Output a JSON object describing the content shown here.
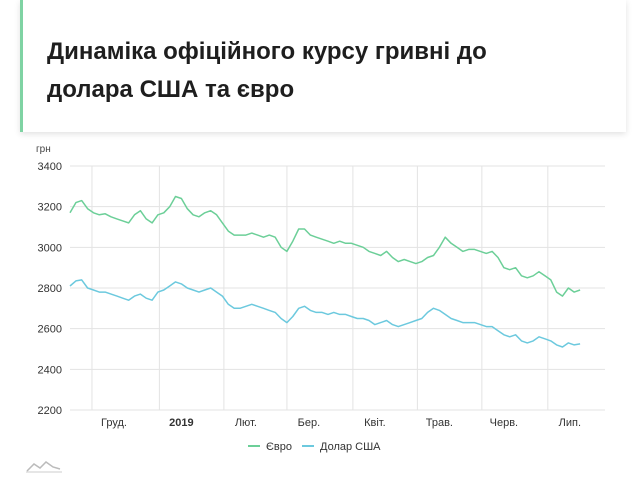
{
  "title": "Динаміка офіційного курсу гривні до долара США та євро",
  "chart_data": {
    "type": "line",
    "title": "Динаміка офіційного курсу гривні до долара США та євро",
    "ylabel": "грн",
    "ylim": [
      2200,
      3400
    ],
    "yticks": [
      2200,
      2400,
      2600,
      2800,
      3000,
      3200,
      3400
    ],
    "x_range": [
      0,
      365
    ],
    "x_ticks": [
      {
        "label": "Груд.",
        "x": 30,
        "bold": false
      },
      {
        "label": "2019",
        "x": 76,
        "bold": true
      },
      {
        "label": "Лют.",
        "x": 120,
        "bold": false
      },
      {
        "label": "Бер.",
        "x": 163,
        "bold": false
      },
      {
        "label": "Квіт.",
        "x": 208,
        "bold": false
      },
      {
        "label": "Трав.",
        "x": 252,
        "bold": false
      },
      {
        "label": "Черв.",
        "x": 296,
        "bold": false
      },
      {
        "label": "Лип.",
        "x": 341,
        "bold": false
      }
    ],
    "grid": true,
    "legend_position": "bottom",
    "series": [
      {
        "name": "Євро",
        "color": "#6ccf98",
        "values": [
          [
            0,
            3170
          ],
          [
            4,
            3220
          ],
          [
            8,
            3230
          ],
          [
            12,
            3190
          ],
          [
            16,
            3170
          ],
          [
            20,
            3160
          ],
          [
            24,
            3165
          ],
          [
            28,
            3150
          ],
          [
            32,
            3140
          ],
          [
            36,
            3130
          ],
          [
            40,
            3120
          ],
          [
            44,
            3160
          ],
          [
            48,
            3180
          ],
          [
            52,
            3140
          ],
          [
            56,
            3120
          ],
          [
            60,
            3160
          ],
          [
            64,
            3170
          ],
          [
            68,
            3200
          ],
          [
            72,
            3250
          ],
          [
            76,
            3240
          ],
          [
            80,
            3190
          ],
          [
            84,
            3160
          ],
          [
            88,
            3150
          ],
          [
            92,
            3170
          ],
          [
            96,
            3180
          ],
          [
            100,
            3160
          ],
          [
            104,
            3120
          ],
          [
            108,
            3080
          ],
          [
            112,
            3060
          ],
          [
            116,
            3060
          ],
          [
            120,
            3060
          ],
          [
            124,
            3070
          ],
          [
            128,
            3060
          ],
          [
            132,
            3050
          ],
          [
            136,
            3060
          ],
          [
            140,
            3050
          ],
          [
            144,
            3000
          ],
          [
            148,
            2980
          ],
          [
            152,
            3030
          ],
          [
            156,
            3090
          ],
          [
            160,
            3090
          ],
          [
            164,
            3060
          ],
          [
            168,
            3050
          ],
          [
            172,
            3040
          ],
          [
            176,
            3030
          ],
          [
            180,
            3020
          ],
          [
            184,
            3030
          ],
          [
            188,
            3020
          ],
          [
            192,
            3020
          ],
          [
            196,
            3010
          ],
          [
            200,
            3000
          ],
          [
            204,
            2980
          ],
          [
            208,
            2970
          ],
          [
            212,
            2960
          ],
          [
            216,
            2980
          ],
          [
            220,
            2950
          ],
          [
            224,
            2930
          ],
          [
            228,
            2940
          ],
          [
            232,
            2930
          ],
          [
            236,
            2920
          ],
          [
            240,
            2930
          ],
          [
            244,
            2950
          ],
          [
            248,
            2960
          ],
          [
            252,
            3000
          ],
          [
            256,
            3050
          ],
          [
            260,
            3020
          ],
          [
            264,
            3000
          ],
          [
            268,
            2980
          ],
          [
            272,
            2990
          ],
          [
            276,
            2990
          ],
          [
            280,
            2980
          ],
          [
            284,
            2970
          ],
          [
            288,
            2980
          ],
          [
            292,
            2950
          ],
          [
            296,
            2900
          ],
          [
            300,
            2890
          ],
          [
            304,
            2900
          ],
          [
            308,
            2860
          ],
          [
            312,
            2850
          ],
          [
            316,
            2860
          ],
          [
            320,
            2880
          ],
          [
            324,
            2860
          ],
          [
            328,
            2840
          ],
          [
            332,
            2780
          ],
          [
            336,
            2760
          ],
          [
            340,
            2800
          ],
          [
            344,
            2780
          ],
          [
            348,
            2790
          ]
        ]
      },
      {
        "name": "Долар США",
        "color": "#6cc9de",
        "values": [
          [
            0,
            2810
          ],
          [
            4,
            2835
          ],
          [
            8,
            2840
          ],
          [
            12,
            2800
          ],
          [
            16,
            2790
          ],
          [
            20,
            2780
          ],
          [
            24,
            2780
          ],
          [
            28,
            2770
          ],
          [
            32,
            2760
          ],
          [
            36,
            2750
          ],
          [
            40,
            2740
          ],
          [
            44,
            2760
          ],
          [
            48,
            2770
          ],
          [
            52,
            2750
          ],
          [
            56,
            2740
          ],
          [
            60,
            2780
          ],
          [
            64,
            2790
          ],
          [
            68,
            2810
          ],
          [
            72,
            2830
          ],
          [
            76,
            2820
          ],
          [
            80,
            2800
          ],
          [
            84,
            2790
          ],
          [
            88,
            2780
          ],
          [
            92,
            2790
          ],
          [
            96,
            2800
          ],
          [
            100,
            2780
          ],
          [
            104,
            2760
          ],
          [
            108,
            2720
          ],
          [
            112,
            2700
          ],
          [
            116,
            2700
          ],
          [
            120,
            2710
          ],
          [
            124,
            2720
          ],
          [
            128,
            2710
          ],
          [
            132,
            2700
          ],
          [
            136,
            2690
          ],
          [
            140,
            2680
          ],
          [
            144,
            2650
          ],
          [
            148,
            2630
          ],
          [
            152,
            2660
          ],
          [
            156,
            2700
          ],
          [
            160,
            2710
          ],
          [
            164,
            2690
          ],
          [
            168,
            2680
          ],
          [
            172,
            2680
          ],
          [
            176,
            2670
          ],
          [
            180,
            2680
          ],
          [
            184,
            2670
          ],
          [
            188,
            2670
          ],
          [
            192,
            2660
          ],
          [
            196,
            2650
          ],
          [
            200,
            2650
          ],
          [
            204,
            2640
          ],
          [
            208,
            2620
          ],
          [
            212,
            2630
          ],
          [
            216,
            2640
          ],
          [
            220,
            2620
          ],
          [
            224,
            2610
          ],
          [
            228,
            2620
          ],
          [
            232,
            2630
          ],
          [
            236,
            2640
          ],
          [
            240,
            2650
          ],
          [
            244,
            2680
          ],
          [
            248,
            2700
          ],
          [
            252,
            2690
          ],
          [
            256,
            2670
          ],
          [
            260,
            2650
          ],
          [
            264,
            2640
          ],
          [
            268,
            2630
          ],
          [
            272,
            2630
          ],
          [
            276,
            2630
          ],
          [
            280,
            2620
          ],
          [
            284,
            2610
          ],
          [
            288,
            2610
          ],
          [
            292,
            2590
          ],
          [
            296,
            2570
          ],
          [
            300,
            2560
          ],
          [
            304,
            2570
          ],
          [
            308,
            2540
          ],
          [
            312,
            2530
          ],
          [
            316,
            2540
          ],
          [
            320,
            2560
          ],
          [
            324,
            2550
          ],
          [
            328,
            2540
          ],
          [
            332,
            2520
          ],
          [
            336,
            2510
          ],
          [
            340,
            2530
          ],
          [
            344,
            2520
          ],
          [
            348,
            2525
          ]
        ]
      }
    ]
  }
}
